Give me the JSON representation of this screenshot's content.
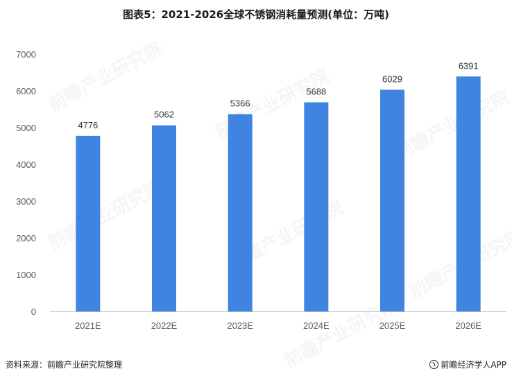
{
  "chart_data": {
    "type": "bar",
    "title": "图表5：2021-2026全球不锈钢消耗量预测(单位：万吨)",
    "categories": [
      "2021E",
      "2022E",
      "2023E",
      "2024E",
      "2025E",
      "2026E"
    ],
    "values": [
      4776,
      5062,
      5366,
      5688,
      6029,
      6391
    ],
    "data_labels": [
      "4776",
      "5062",
      "5366",
      "5688",
      "6029",
      "6391"
    ],
    "xlabel": "",
    "ylabel": "",
    "ylim": [
      0,
      7000
    ],
    "yticks": [
      "0",
      "1000",
      "2000",
      "3000",
      "4000",
      "5000",
      "6000",
      "7000"
    ],
    "grid": false,
    "bar_color": "#3f84e0",
    "axis_color": "#bfbfbf",
    "tick_label_color": "#595959"
  },
  "footer": {
    "source": "资料来源：前瞻产业研究院整理",
    "brand": "前瞻经济学人APP"
  },
  "watermark": {
    "text": "前瞻产业研究院"
  }
}
